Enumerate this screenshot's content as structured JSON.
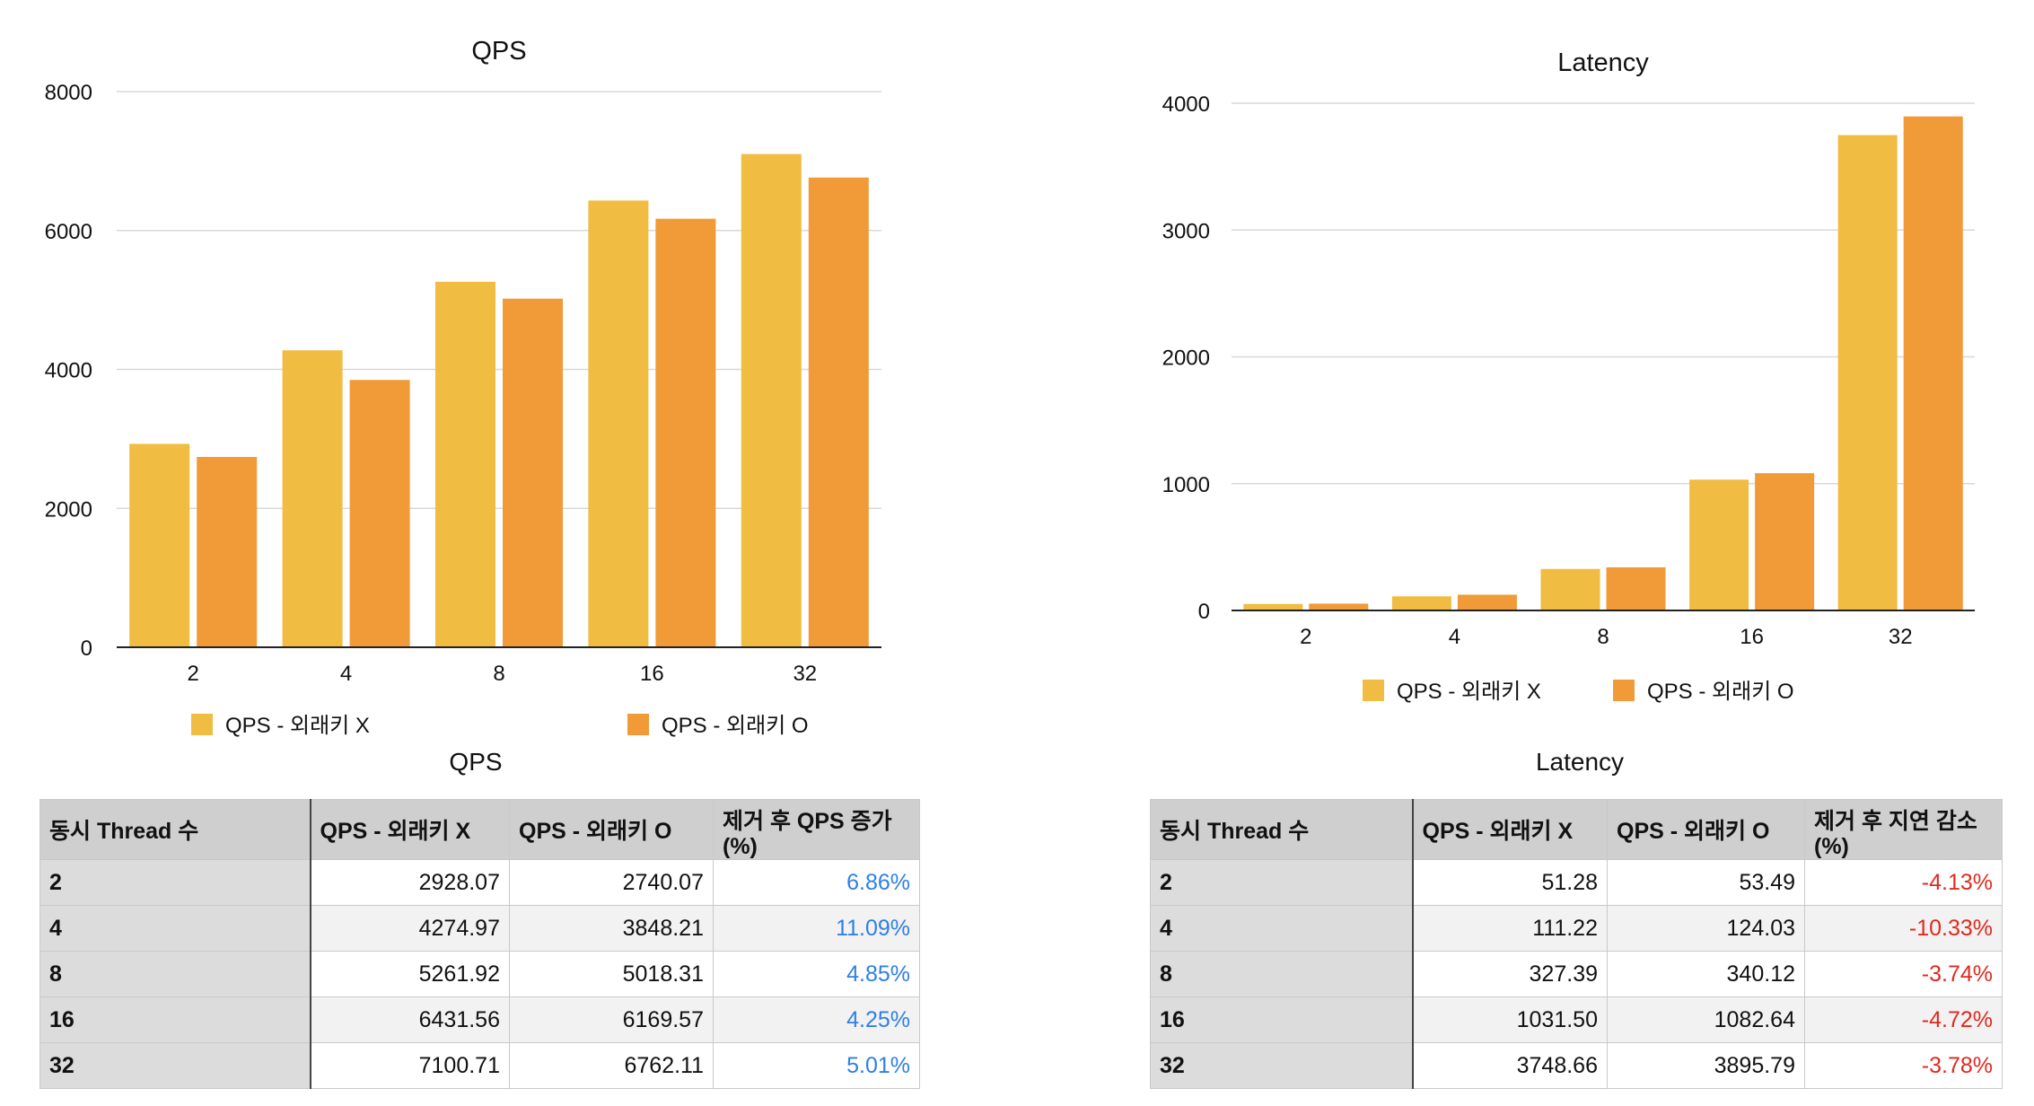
{
  "colors": {
    "series_x": "#F0BC42",
    "series_o": "#F09A38",
    "increase": "#2f7fe6",
    "decrease": "#e02a1f",
    "grid": "#d8d8d8",
    "axis": "#222222"
  },
  "chart_data": [
    {
      "type": "bar",
      "title": "QPS",
      "categories": [
        "2",
        "4",
        "8",
        "16",
        "32"
      ],
      "series": [
        {
          "name": "QPS - 외래키 X",
          "values": [
            2928.07,
            4274.97,
            5261.92,
            6431.56,
            7100.71
          ]
        },
        {
          "name": "QPS - 외래키 O",
          "values": [
            2740.07,
            3848.21,
            5018.31,
            6169.57,
            6762.11
          ]
        }
      ],
      "ylim": [
        0,
        8000
      ],
      "yticks": [
        "0",
        "2000",
        "4000",
        "6000",
        "8000"
      ],
      "grid": true,
      "legend": "bottom"
    },
    {
      "type": "bar",
      "title": "Latency",
      "categories": [
        "2",
        "4",
        "8",
        "16",
        "32"
      ],
      "series": [
        {
          "name": "QPS - 외래키 X",
          "values": [
            51.28,
            111.22,
            327.39,
            1031.5,
            3748.66
          ]
        },
        {
          "name": "QPS - 외래키 O",
          "values": [
            53.49,
            124.03,
            340.12,
            1082.64,
            3895.79
          ]
        }
      ],
      "ylim": [
        0,
        4000
      ],
      "yticks": [
        "0",
        "1000",
        "2000",
        "3000",
        "4000"
      ],
      "grid": true,
      "legend": "bottom"
    }
  ],
  "tables": [
    {
      "title": "QPS",
      "headers": [
        "동시 Thread 수",
        "QPS - 외래키 X",
        "QPS - 외래키 O",
        "제거 후 QPS 증가 (%)"
      ],
      "rows": [
        [
          "2",
          "2928.07",
          "2740.07",
          "6.86%"
        ],
        [
          "4",
          "4274.97",
          "3848.21",
          "11.09%"
        ],
        [
          "8",
          "5261.92",
          "5018.31",
          "4.85%"
        ],
        [
          "16",
          "6431.56",
          "6169.57",
          "4.25%"
        ],
        [
          "32",
          "7100.71",
          "6762.11",
          "5.01%"
        ]
      ]
    },
    {
      "title": "Latency",
      "headers": [
        "동시 Thread 수",
        "QPS - 외래키 X",
        "QPS - 외래키 O",
        "제거 후 지연 감소 (%)"
      ],
      "rows": [
        [
          "2",
          "51.28",
          "53.49",
          "-4.13%"
        ],
        [
          "4",
          "111.22",
          "124.03",
          "-10.33%"
        ],
        [
          "8",
          "327.39",
          "340.12",
          "-3.74%"
        ],
        [
          "16",
          "1031.50",
          "1082.64",
          "-4.72%"
        ],
        [
          "32",
          "3748.66",
          "3895.79",
          "-3.78%"
        ]
      ]
    }
  ]
}
